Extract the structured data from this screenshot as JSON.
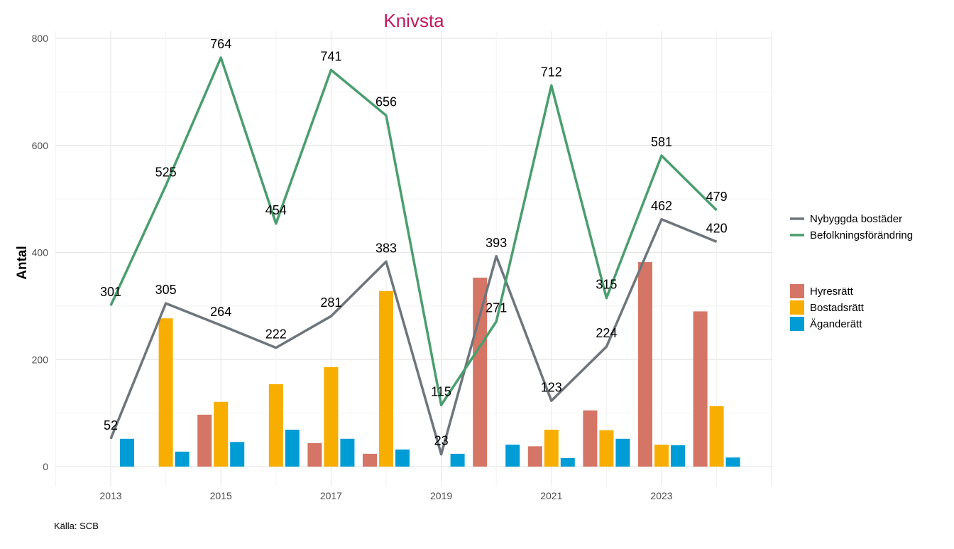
{
  "chart_data": {
    "type": "bar+line",
    "title": "Knivsta",
    "xlabel": "",
    "ylabel": "Antal",
    "ylim": [
      0,
      800
    ],
    "yticks": [
      0,
      200,
      400,
      600,
      800
    ],
    "xticks": [
      2013,
      2015,
      2017,
      2019,
      2021,
      2023
    ],
    "grid": true,
    "caption": "Källa: SCB",
    "x": [
      2013,
      2014,
      2015,
      2016,
      2017,
      2018,
      2019,
      2020,
      2021,
      2022,
      2023,
      2024
    ],
    "line_series": [
      {
        "name": "Nybyggda bostäder",
        "color": "#6e757c",
        "values": [
          52,
          305,
          264,
          222,
          281,
          383,
          23,
          393,
          123,
          224,
          462,
          420
        ]
      },
      {
        "name": "Befolkningsförändring",
        "color": "#4a9e6e",
        "values": [
          301,
          525,
          764,
          454,
          741,
          656,
          115,
          271,
          712,
          315,
          581,
          479
        ]
      }
    ],
    "bar_series": [
      {
        "name": "Hyresrätt",
        "color": "#d57565",
        "values": [
          0,
          0,
          97,
          0,
          44,
          24,
          0,
          353,
          38,
          105,
          382,
          290
        ]
      },
      {
        "name": "Bostadsrätt",
        "color": "#f8ae00",
        "values": [
          0,
          277,
          121,
          154,
          186,
          328,
          0,
          0,
          69,
          68,
          41,
          113
        ]
      },
      {
        "name": "Äganderätt",
        "color": "#009cd6",
        "values": [
          52,
          28,
          46,
          69,
          52,
          32,
          24,
          41,
          16,
          52,
          40,
          17
        ]
      }
    ],
    "legend_placement": "right",
    "title_color": "#c0185f"
  }
}
